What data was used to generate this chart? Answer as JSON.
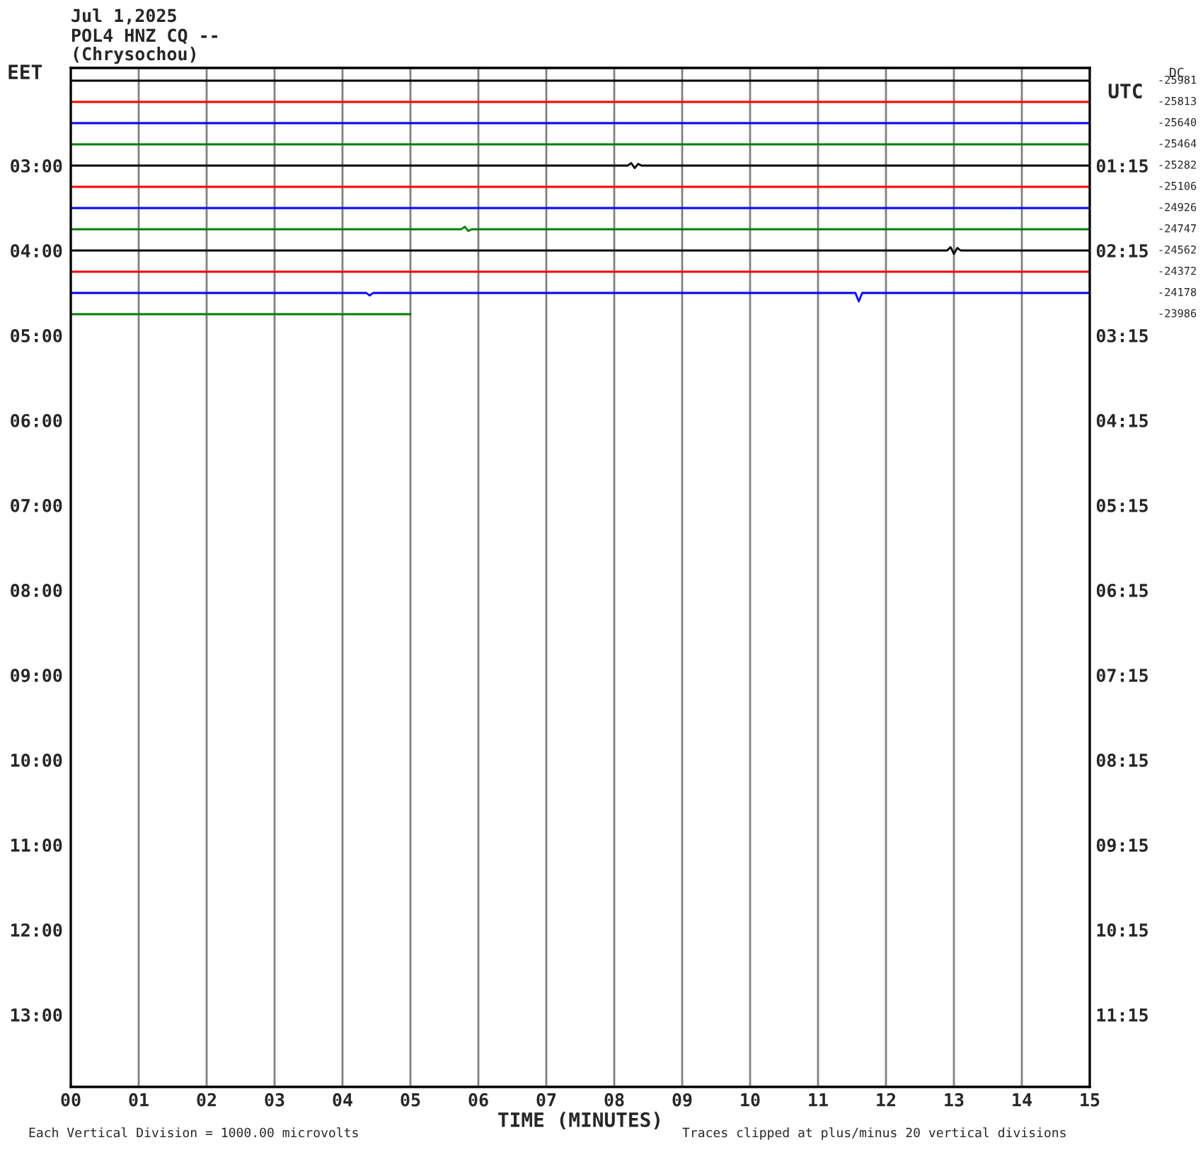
{
  "chart_data": {
    "type": "line",
    "title": "Jul 1,2025",
    "subtitle": "POL4 HNZ CQ --\n(Chrysochou)",
    "xlabel": "TIME (MINUTES)",
    "ylabel": "EET",
    "y2label": "UTC",
    "annotations": [
      "Each Vertical Division = 1000.00 microvolts",
      "Traces clipped at plus/minus 20 vertical divisions",
      "DC",
      "-25981",
      "-25813",
      "-25640",
      "-25464",
      "-25282",
      "-25106",
      "-24926",
      "-24747",
      "-24562",
      "-24372",
      "-24178",
      "-23986"
    ],
    "series": [
      {
        "color": "#000000",
        "x": [
          0,
          15
        ],
        "values": [
          2.0,
          2.0
        ]
      },
      {
        "color": "#ff0000",
        "x": [
          0,
          15
        ],
        "values": [
          2.25,
          2.25
        ]
      },
      {
        "color": "#0000ff",
        "x": [
          0,
          15
        ],
        "values": [
          2.5,
          2.5
        ]
      },
      {
        "color": "#008000",
        "x": [
          0,
          15
        ],
        "values": [
          2.75,
          2.75
        ]
      },
      {
        "color": "#000000",
        "x": [
          0,
          8.2,
          8.25,
          8.3,
          8.35,
          8.4,
          15
        ],
        "values": [
          3.0,
          3.0,
          2.97,
          3.03,
          2.98,
          3.0,
          3.0
        ]
      },
      {
        "color": "#ff0000",
        "x": [
          0,
          15
        ],
        "values": [
          3.25,
          3.25
        ]
      },
      {
        "color": "#0000ff",
        "x": [
          0,
          15
        ],
        "values": [
          3.5,
          3.5
        ]
      },
      {
        "color": "#008000",
        "x": [
          0,
          5.75,
          5.8,
          5.85,
          5.9,
          15
        ],
        "values": [
          3.75,
          3.75,
          3.72,
          3.77,
          3.75,
          3.75
        ]
      },
      {
        "color": "#000000",
        "x": [
          0,
          12.9,
          12.95,
          13.0,
          13.05,
          13.1,
          15
        ],
        "values": [
          4.0,
          4.0,
          3.96,
          4.04,
          3.97,
          4.0,
          4.0
        ]
      },
      {
        "color": "#ff0000",
        "x": [
          0,
          15
        ],
        "values": [
          4.25,
          4.25
        ]
      },
      {
        "color": "#0000ff",
        "x": [
          0,
          4.35,
          4.4,
          4.45,
          11.55,
          11.6,
          11.65,
          15
        ],
        "values": [
          4.5,
          4.5,
          4.53,
          4.5,
          4.5,
          4.6,
          4.5,
          4.5
        ]
      },
      {
        "color": "#008000",
        "x": [
          0,
          5
        ],
        "values": [
          4.75,
          4.75
        ]
      }
    ],
    "xlim": [
      0,
      15
    ],
    "xticks": [
      {
        "value": 0,
        "label": "00"
      },
      {
        "value": 1,
        "label": "01"
      },
      {
        "value": 2,
        "label": "02"
      },
      {
        "value": 3,
        "label": "03"
      },
      {
        "value": 4,
        "label": "04"
      },
      {
        "value": 5,
        "label": "05"
      },
      {
        "value": 6,
        "label": "06"
      },
      {
        "value": 7,
        "label": "07"
      },
      {
        "value": 8,
        "label": "08"
      },
      {
        "value": 9,
        "label": "09"
      },
      {
        "value": 10,
        "label": "10"
      },
      {
        "value": 11,
        "label": "11"
      },
      {
        "value": 12,
        "label": "12"
      },
      {
        "value": 13,
        "label": "13"
      },
      {
        "value": 14,
        "label": "14"
      },
      {
        "value": 15,
        "label": "15"
      }
    ],
    "ylim": [
      13.85,
      1.85
    ],
    "yticks": [
      {
        "value": 3,
        "label": "03:00"
      },
      {
        "value": 4,
        "label": "04:00"
      },
      {
        "value": 5,
        "label": "05:00"
      },
      {
        "value": 6,
        "label": "06:00"
      },
      {
        "value": 7,
        "label": "07:00"
      },
      {
        "value": 8,
        "label": "08:00"
      },
      {
        "value": 9,
        "label": "09:00"
      },
      {
        "value": 10,
        "label": "10:00"
      },
      {
        "value": 11,
        "label": "11:00"
      },
      {
        "value": 12,
        "label": "12:00"
      },
      {
        "value": 13,
        "label": "13:00"
      }
    ],
    "y2lim": [
      12.1,
      0.1
    ],
    "y2ticks": [
      {
        "value": 1.25,
        "label": "01:15"
      },
      {
        "value": 2.25,
        "label": "02:15"
      },
      {
        "value": 3.25,
        "label": "03:15"
      },
      {
        "value": 4.25,
        "label": "04:15"
      },
      {
        "value": 5.25,
        "label": "05:15"
      },
      {
        "value": 6.25,
        "label": "06:15"
      },
      {
        "value": 7.25,
        "label": "07:15"
      },
      {
        "value": 8.25,
        "label": "08:15"
      },
      {
        "value": 9.25,
        "label": "09:15"
      },
      {
        "value": 10.25,
        "label": "10:15"
      },
      {
        "value": 11.25,
        "label": "11:15"
      }
    ],
    "grid": "x",
    "line_style": "solid",
    "marker": "none"
  }
}
